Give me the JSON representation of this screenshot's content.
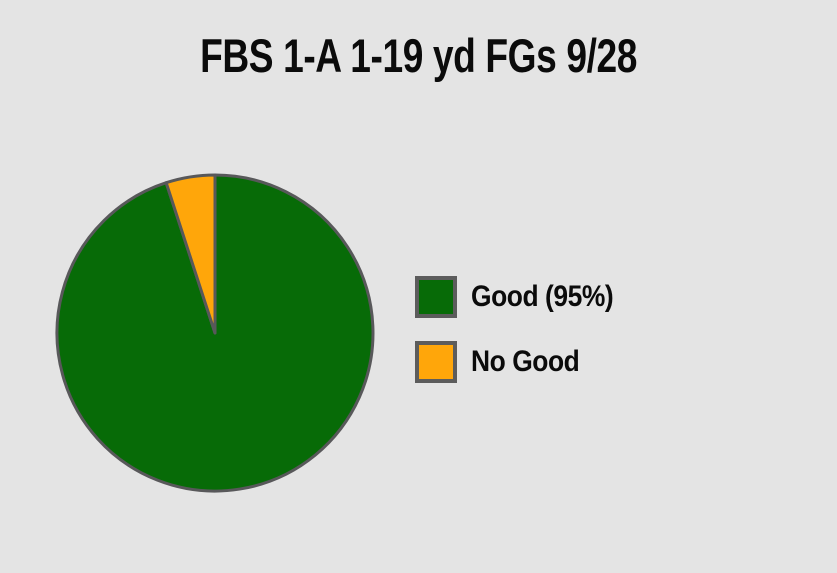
{
  "page": {
    "background_color": "#e4e4e4"
  },
  "chart_data": {
    "type": "pie",
    "title": "FBS 1-A 1-19 yd FGs 9/28",
    "labels": [
      "Good",
      "No Good"
    ],
    "values": [
      95,
      5
    ],
    "colors": [
      "#076b07",
      "#ffa60a"
    ],
    "slice_stroke_color": "#58585a",
    "slice_stroke_width": 3,
    "start_angle_deg": 0,
    "direction": "clockwise",
    "legend_position": "right",
    "legend": {
      "entries": [
        {
          "label": "Good (95%)",
          "color": "#076b07"
        },
        {
          "label": "No Good",
          "color": "#ffa60a"
        }
      ],
      "swatch_border_color": "#5c5c5c"
    }
  }
}
